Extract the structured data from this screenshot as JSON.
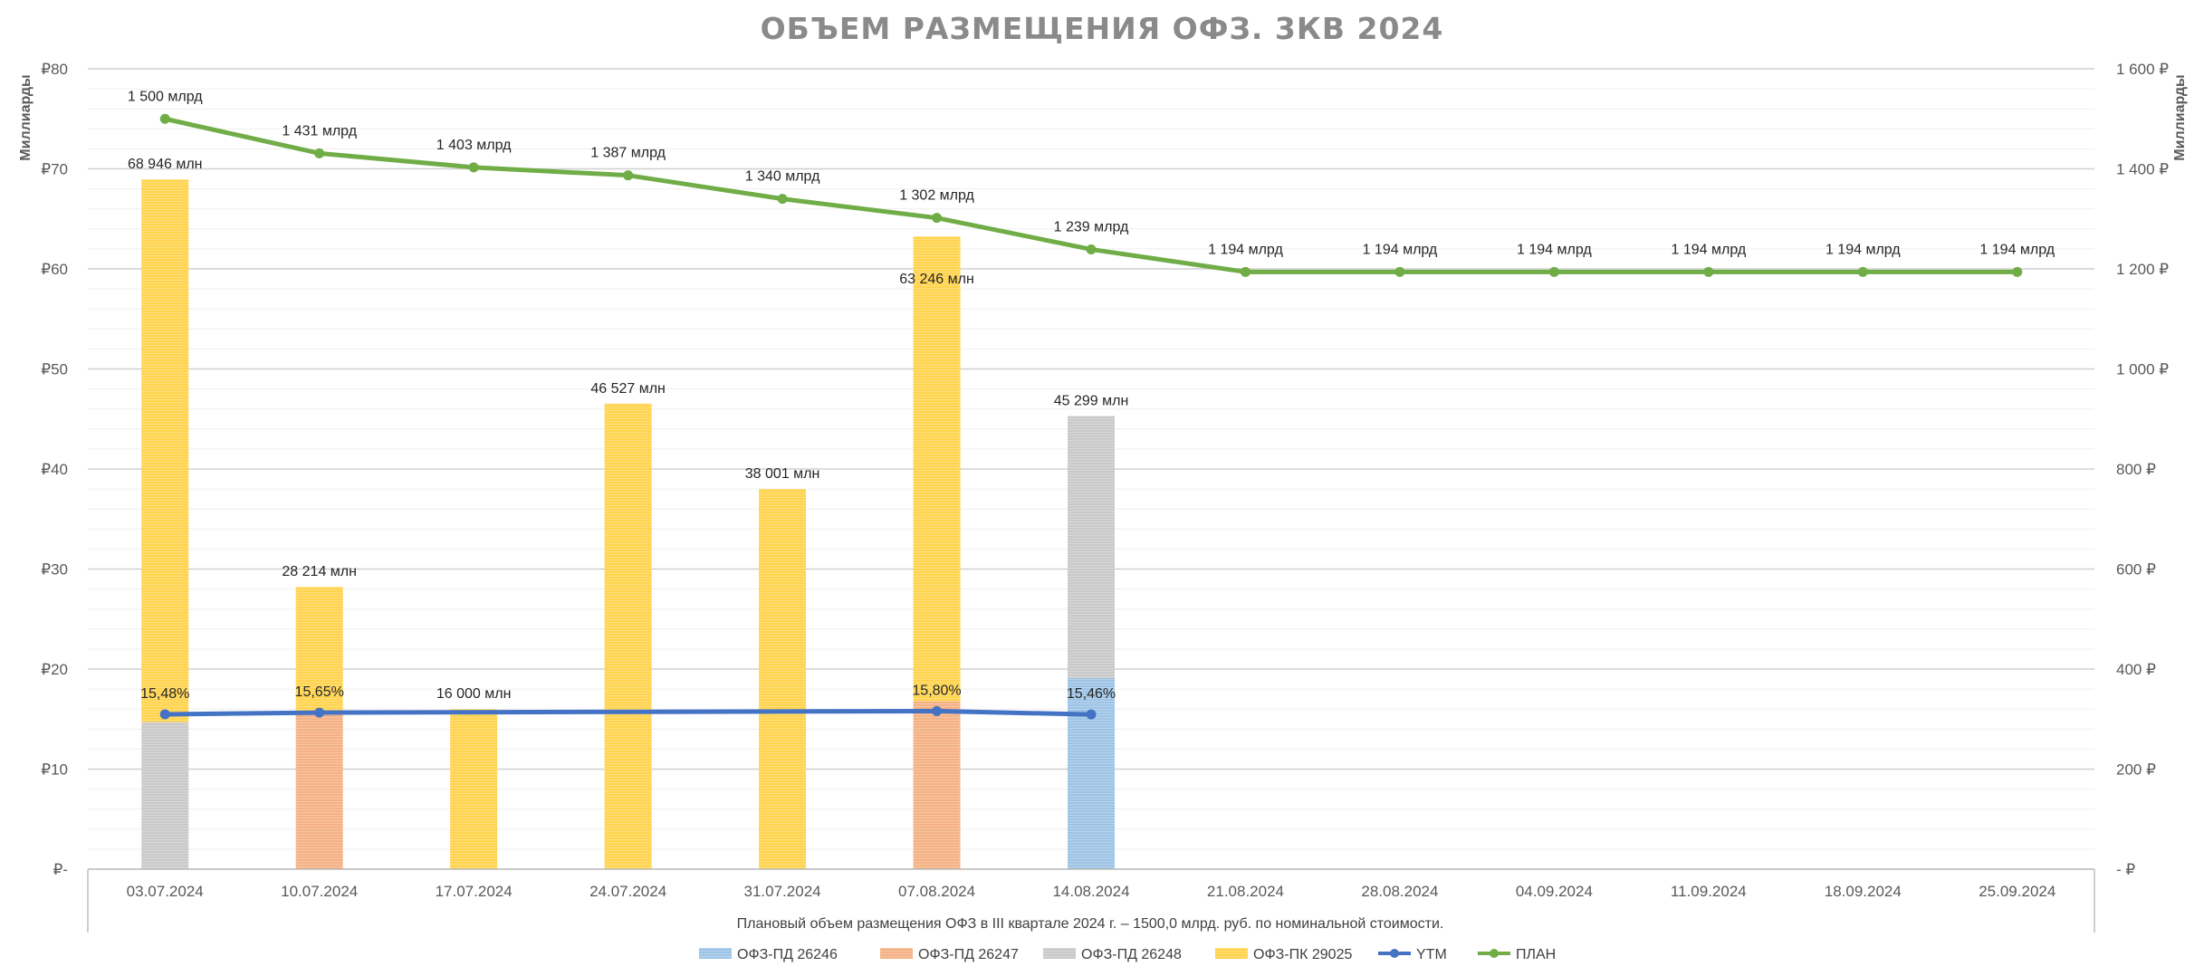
{
  "chart_data": {
    "type": "bar",
    "title": "ОБЪЕМ РАЗМЕЩЕНИЯ ОФЗ. 3КВ 2024",
    "ylabel_left": "Миллиарды",
    "ylabel_right": "Миллиарды",
    "note": "Плановый объем размещения ОФЗ в III квартале 2024 г. – 1500,0 млрд. руб. по номинальной стоимости.",
    "ylim_left": [
      0,
      80
    ],
    "ylim_right": [
      0,
      1600
    ],
    "left_ticks": [
      {
        "value": 0,
        "label": "₽-"
      },
      {
        "value": 10,
        "label": "₽10"
      },
      {
        "value": 20,
        "label": "₽20"
      },
      {
        "value": 30,
        "label": "₽30"
      },
      {
        "value": 40,
        "label": "₽40"
      },
      {
        "value": 50,
        "label": "₽50"
      },
      {
        "value": 60,
        "label": "₽60"
      },
      {
        "value": 70,
        "label": "₽70"
      },
      {
        "value": 80,
        "label": "₽80"
      }
    ],
    "right_ticks": [
      {
        "value": 0,
        "label": "-  ₽"
      },
      {
        "value": 200,
        "label": "200 ₽"
      },
      {
        "value": 400,
        "label": "400 ₽"
      },
      {
        "value": 600,
        "label": "600 ₽"
      },
      {
        "value": 800,
        "label": "800 ₽"
      },
      {
        "value": 1000,
        "label": "1 000 ₽"
      },
      {
        "value": 1200,
        "label": "1 200 ₽"
      },
      {
        "value": 1400,
        "label": "1 400 ₽"
      },
      {
        "value": 1600,
        "label": "1 600 ₽"
      }
    ],
    "categories": [
      "03.07.2024",
      "10.07.2024",
      "17.07.2024",
      "24.07.2024",
      "31.07.2024",
      "07.08.2024",
      "14.08.2024",
      "21.08.2024",
      "28.08.2024",
      "04.09.2024",
      "11.09.2024",
      "18.09.2024",
      "25.09.2024"
    ],
    "colors": {
      "pd26246": "#9dc3e6",
      "pd26247": "#f4b183",
      "pd26248": "#c9c9c9",
      "pk29025": "#ffd34d",
      "ytm": "#4472c4",
      "plan": "#70ad47"
    },
    "bar_series": [
      {
        "name": "ОФЗ-ПД 26246",
        "key": "pd26246",
        "values": [
          0,
          0,
          0,
          0,
          0,
          0,
          19.1,
          0,
          0,
          0,
          0,
          0,
          0
        ]
      },
      {
        "name": "ОФЗ-ПД 26247",
        "key": "pd26247",
        "values": [
          0,
          15.7,
          0,
          0,
          0,
          16.8,
          0,
          0,
          0,
          0,
          0,
          0,
          0
        ]
      },
      {
        "name": "ОФЗ-ПД 26248",
        "key": "pd26248",
        "values": [
          14.7,
          0,
          0,
          0,
          0,
          0,
          26.199,
          0,
          0,
          0,
          0,
          0,
          0
        ]
      },
      {
        "name": "ОФЗ-ПК 29025",
        "key": "pk29025",
        "values": [
          54.246,
          12.514,
          16.0,
          46.527,
          38.001,
          46.446,
          0,
          0,
          0,
          0,
          0,
          0,
          0
        ]
      }
    ],
    "bar_totals": [
      "68 946 млн",
      "28 214 млн",
      "16 000 млн",
      "46 527 млн",
      "38 001 млн",
      "63 246 млн",
      "45 299 млн",
      "",
      "",
      "",
      "",
      "",
      ""
    ],
    "bar_totals_values": [
      68.946,
      28.214,
      16.0,
      46.527,
      38.001,
      63.246,
      45.299,
      0,
      0,
      0,
      0,
      0,
      0
    ],
    "ytm_series": {
      "name": "YTM",
      "values": [
        15.48,
        15.65,
        null,
        null,
        null,
        15.8,
        15.46,
        null,
        null,
        null,
        null,
        null,
        null
      ],
      "labels": [
        "15,48%",
        "15,65%",
        "",
        "",
        "",
        "15,80%",
        "15,46%",
        "",
        "",
        "",
        "",
        "",
        ""
      ]
    },
    "plan_series": {
      "name": "ПЛАН",
      "values": [
        1500,
        1431,
        1403,
        1387,
        1340,
        1302,
        1239,
        1194,
        1194,
        1194,
        1194,
        1194,
        1194
      ],
      "labels": [
        "1 500 млрд",
        "1 431 млрд",
        "1 403 млрд",
        "1 387 млрд",
        "1 340 млрд",
        "1 302 млрд",
        "1 239 млрд",
        "1 194 млрд",
        "1 194 млрд",
        "1 194 млрд",
        "1 194 млрд",
        "1 194  млрд",
        "1 194 млрд"
      ]
    },
    "legend": [
      {
        "label": "ОФЗ-ПД 26246",
        "kind": "bar",
        "key": "pd26246"
      },
      {
        "label": "ОФЗ-ПД 26247",
        "kind": "bar",
        "key": "pd26247"
      },
      {
        "label": "ОФЗ-ПД 26248",
        "kind": "bar",
        "key": "pd26248"
      },
      {
        "label": "ОФЗ-ПК 29025",
        "kind": "bar",
        "key": "pk29025"
      },
      {
        "label": "YTM",
        "kind": "line",
        "key": "ytm"
      },
      {
        "label": "ПЛАН",
        "kind": "line",
        "key": "plan"
      }
    ],
    "legend_position": "bottom",
    "grid": true
  }
}
